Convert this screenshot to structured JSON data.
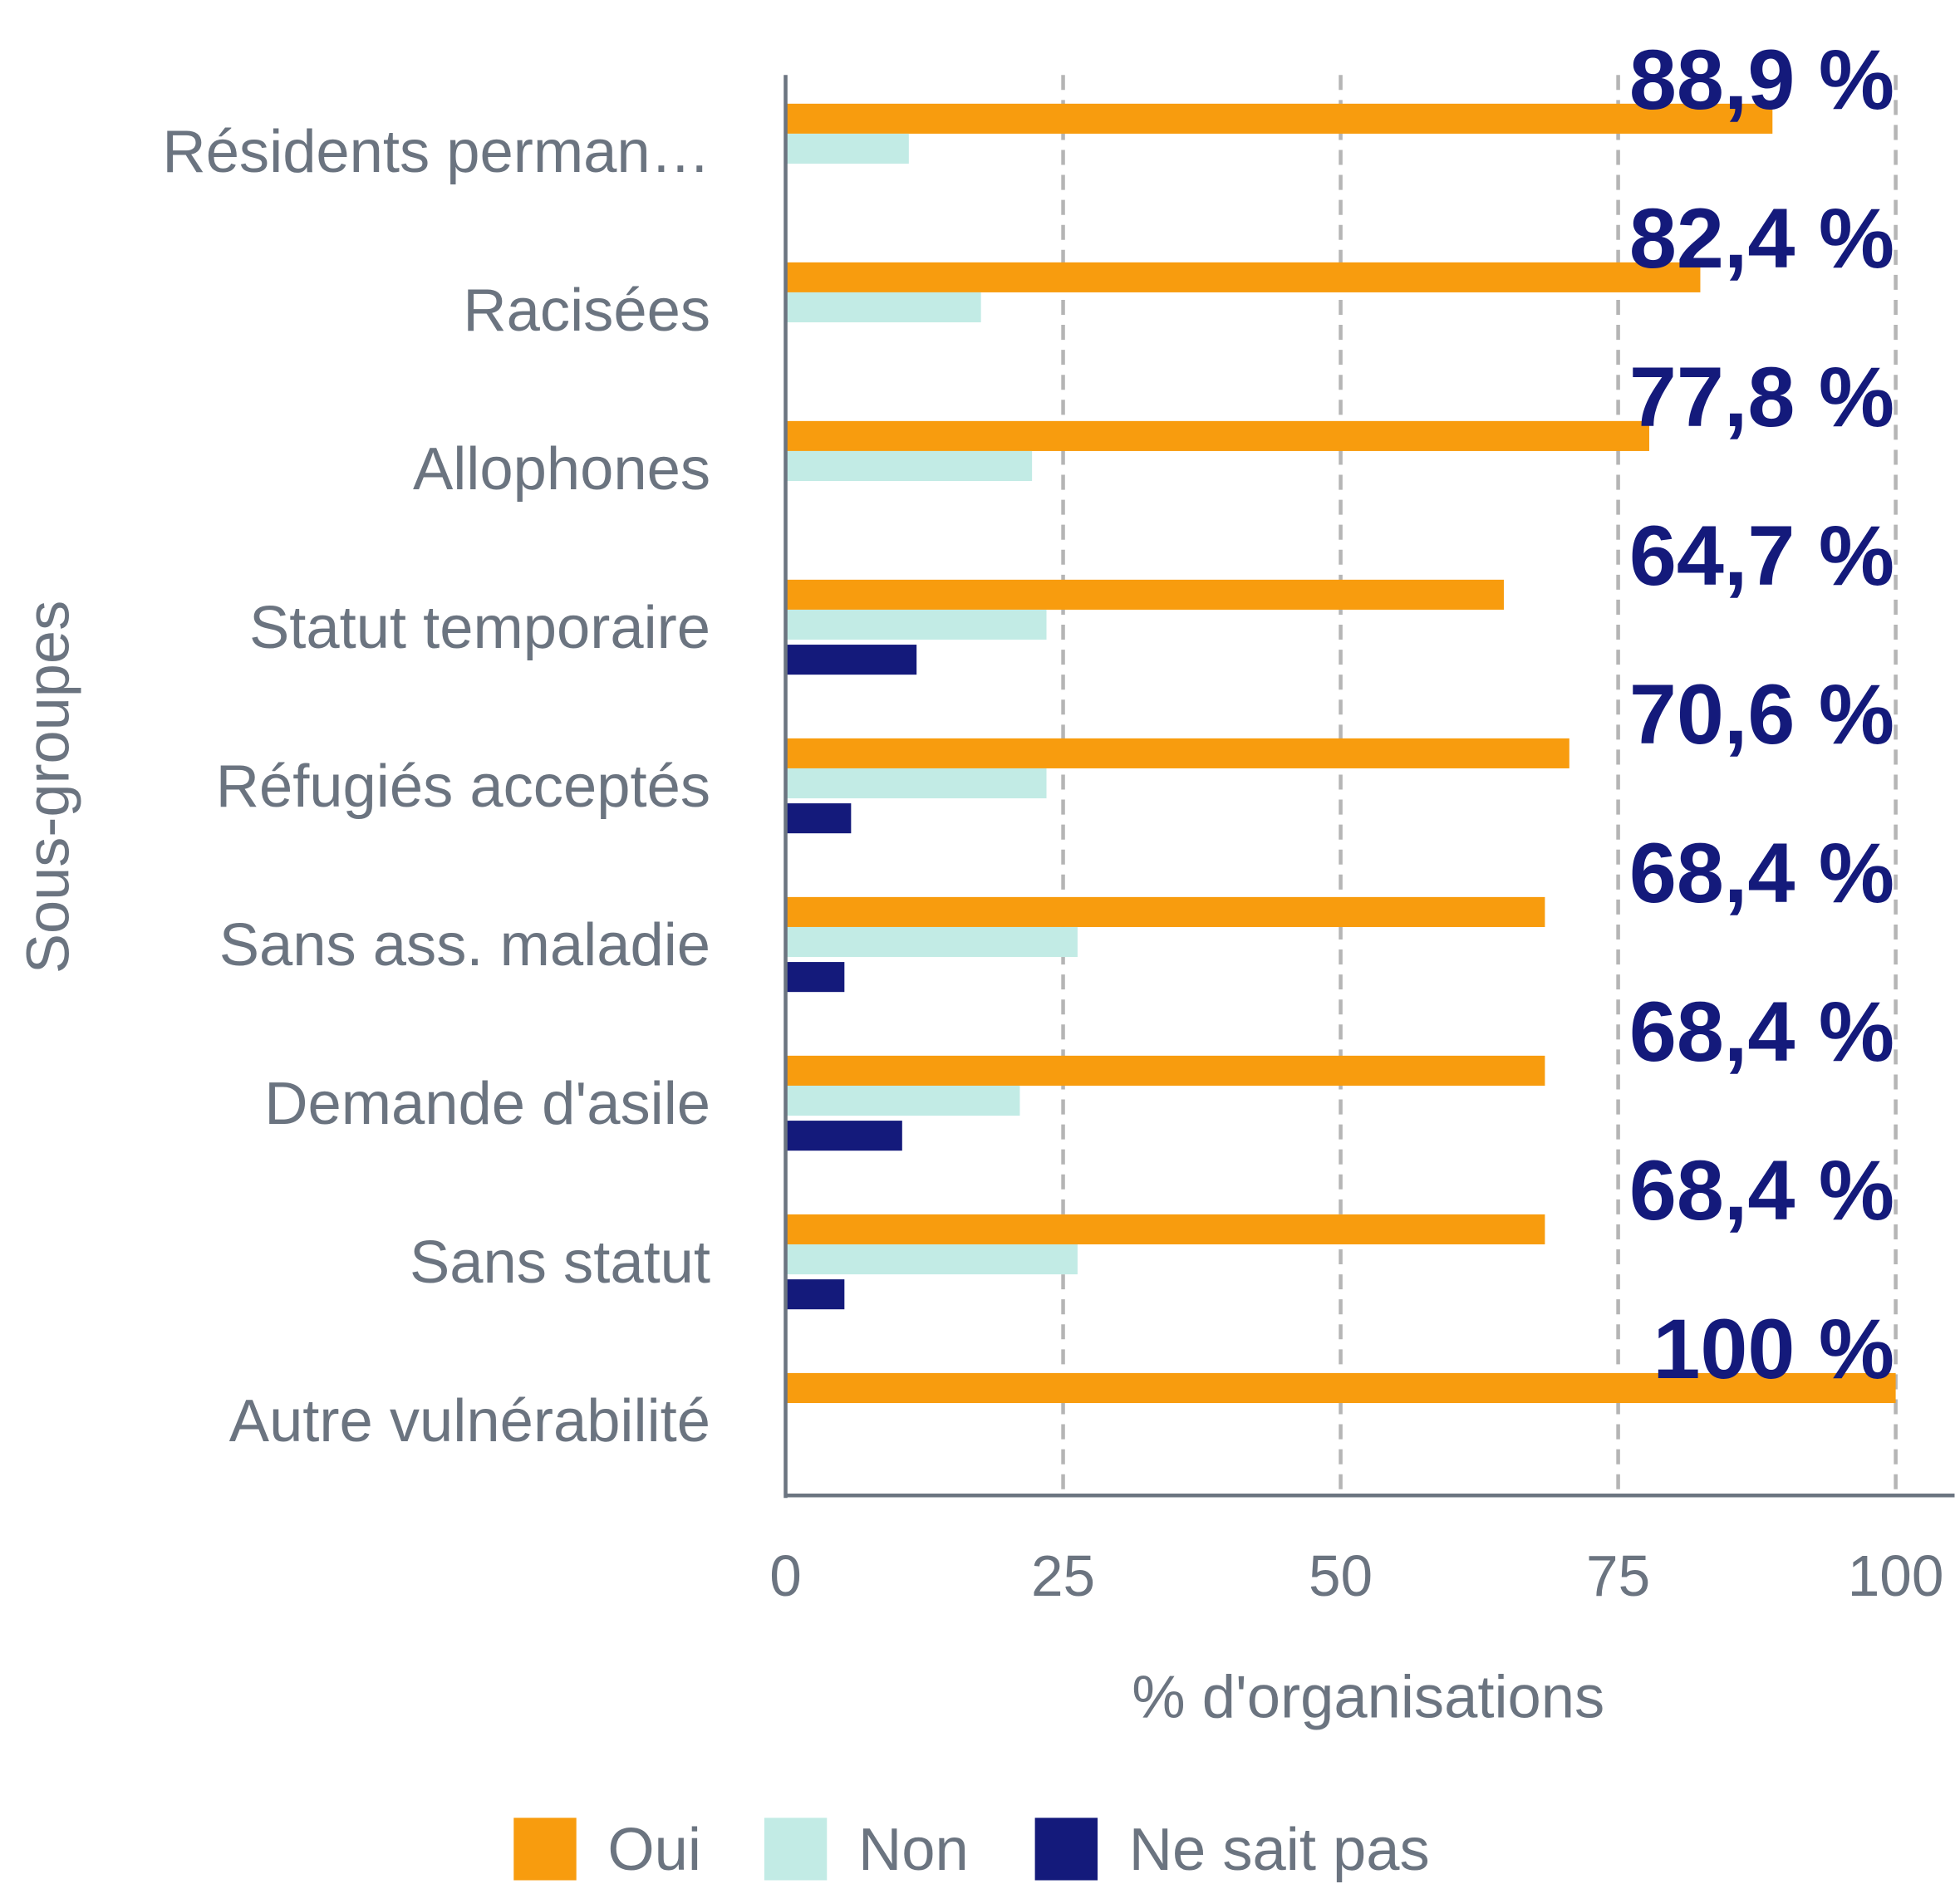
{
  "chart_data": {
    "type": "barh",
    "categories": [
      "Résidents perman…",
      "Racisées",
      "Allophones",
      "Statut temporaire",
      "Réfugiés acceptés",
      "Sans ass. maladie",
      "Demande d'asile",
      "Sans statut",
      "Autre vulnérabilité"
    ],
    "series": [
      {
        "name": "Oui",
        "color": "#f89c0e",
        "values": [
          88.9,
          82.4,
          77.8,
          64.7,
          70.6,
          68.4,
          68.4,
          68.4,
          100
        ],
        "value_labels": [
          "88,9 %",
          "82,4 %",
          "77,8 %",
          "64,7 %",
          "70,6 %",
          "68,4 %",
          "68,4 %",
          "68,4 %",
          "100 %"
        ]
      },
      {
        "name": "Non",
        "color": "#c2ebe5",
        "values": [
          11.1,
          17.6,
          22.2,
          23.5,
          23.5,
          26.3,
          21.1,
          26.3,
          0
        ]
      },
      {
        "name": "Ne sait pas",
        "color": "#141a7b",
        "values": [
          0,
          0,
          0,
          11.8,
          5.9,
          5.3,
          10.5,
          5.3,
          0
        ]
      }
    ],
    "xlabel": "% d'organisations",
    "ylabel": "Sous-groupes",
    "xlim": [
      0,
      100
    ],
    "xticks": [
      0,
      25,
      50,
      75,
      100
    ],
    "grid": true,
    "legend": "bottom"
  }
}
